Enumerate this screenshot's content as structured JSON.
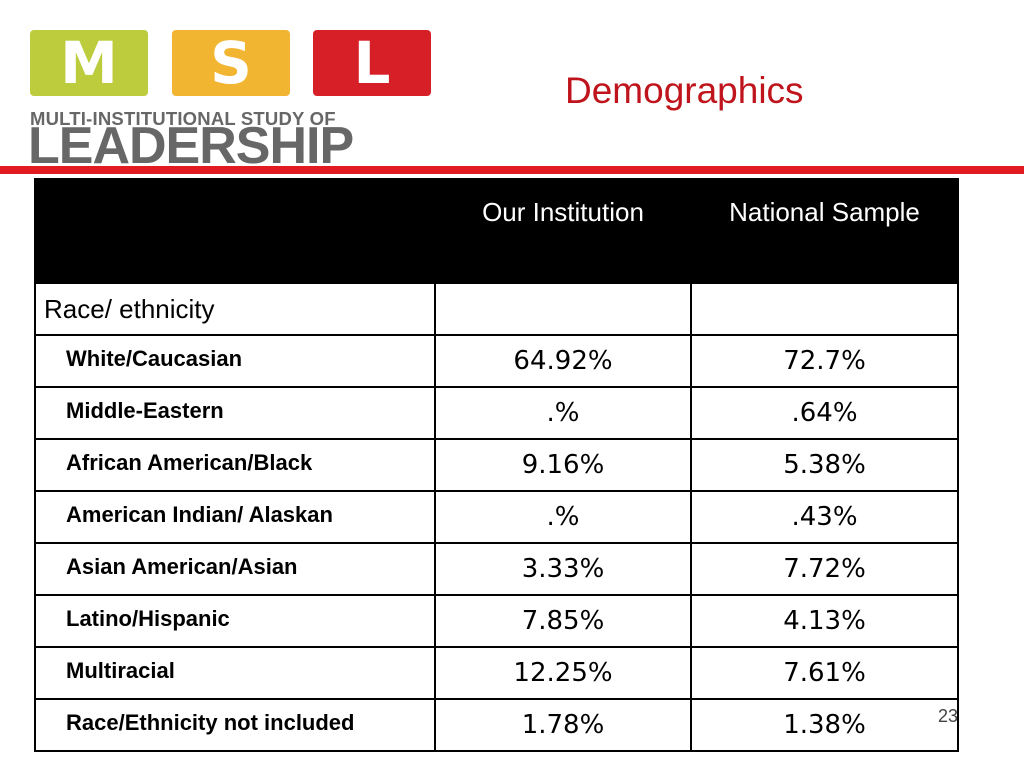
{
  "logo": {
    "letters": [
      "M",
      "S",
      "L"
    ],
    "tagline": "MULTI-INSTITUTIONAL STUDY OF",
    "wordmark": "LEADERSHIP",
    "colors": {
      "m": "#bccc3c",
      "s": "#f2b532",
      "l": "#d71f27",
      "text": "#676767"
    }
  },
  "slide": {
    "title": "Demographics",
    "number": "23",
    "accent_color": "#e21b22"
  },
  "table": {
    "headers": [
      "",
      "Our Institution",
      "National Sample"
    ],
    "section_label": "Race/ ethnicity",
    "rows": [
      {
        "label": "White/Caucasian",
        "ours": "64.92%",
        "national": "72.7%"
      },
      {
        "label": "Middle-Eastern",
        "ours": ".%",
        "national": ".64%"
      },
      {
        "label": "African American/Black",
        "ours": "9.16%",
        "national": "5.38%"
      },
      {
        "label": "American Indian/ Alaskan",
        "ours": ".%",
        "national": ".43%"
      },
      {
        "label": "Asian American/Asian",
        "ours": "3.33%",
        "national": "7.72%"
      },
      {
        "label": "Latino/Hispanic",
        "ours": "7.85%",
        "national": "4.13%"
      },
      {
        "label": "Multiracial",
        "ours": "12.25%",
        "national": "7.61%"
      },
      {
        "label": "Race/Ethnicity not included",
        "ours": "1.78%",
        "national": "1.38%"
      }
    ]
  }
}
